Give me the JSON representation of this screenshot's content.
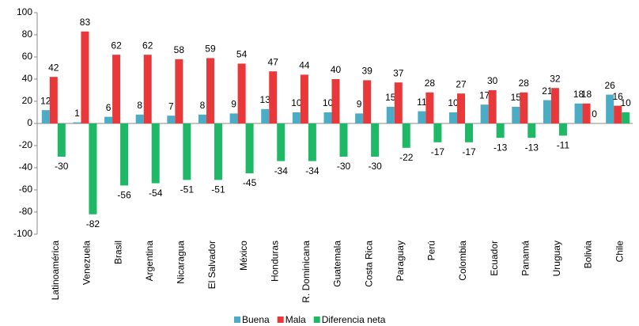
{
  "chart_data": {
    "type": "bar",
    "categories": [
      "Latinoamérica",
      "Venezuela",
      "Brasil",
      "Argentina",
      "Nicaragua",
      "El Salvador",
      "México",
      "Honduras",
      "R. Dominicana",
      "Guatemala",
      "Costa Rica",
      "Paraguay",
      "Perú",
      "Colombia",
      "Ecuador",
      "Panamá",
      "Uruguay",
      "Bolivia",
      "Chile"
    ],
    "series": [
      {
        "name": "Buena",
        "color": "#4bacc6",
        "values": [
          12,
          1,
          6,
          8,
          7,
          8,
          9,
          13,
          10,
          10,
          9,
          15,
          11,
          10,
          17,
          15,
          21,
          18,
          26
        ]
      },
      {
        "name": "Mala",
        "color": "#e8383a",
        "values": [
          42,
          83,
          62,
          62,
          58,
          59,
          54,
          47,
          44,
          40,
          39,
          37,
          28,
          27,
          30,
          28,
          32,
          18,
          16
        ]
      },
      {
        "name": "Diferencia neta",
        "color": "#1fb866",
        "values": [
          -30,
          -82,
          -56,
          -54,
          -51,
          -51,
          -45,
          -34,
          -34,
          -30,
          -30,
          -22,
          -17,
          -17,
          -13,
          -13,
          -11,
          0,
          10
        ]
      }
    ],
    "ylim": [
      -100,
      100
    ],
    "yticks": [
      -100,
      -80,
      -60,
      -40,
      -20,
      0,
      20,
      40,
      60,
      80,
      100
    ],
    "legend": "bottom"
  }
}
